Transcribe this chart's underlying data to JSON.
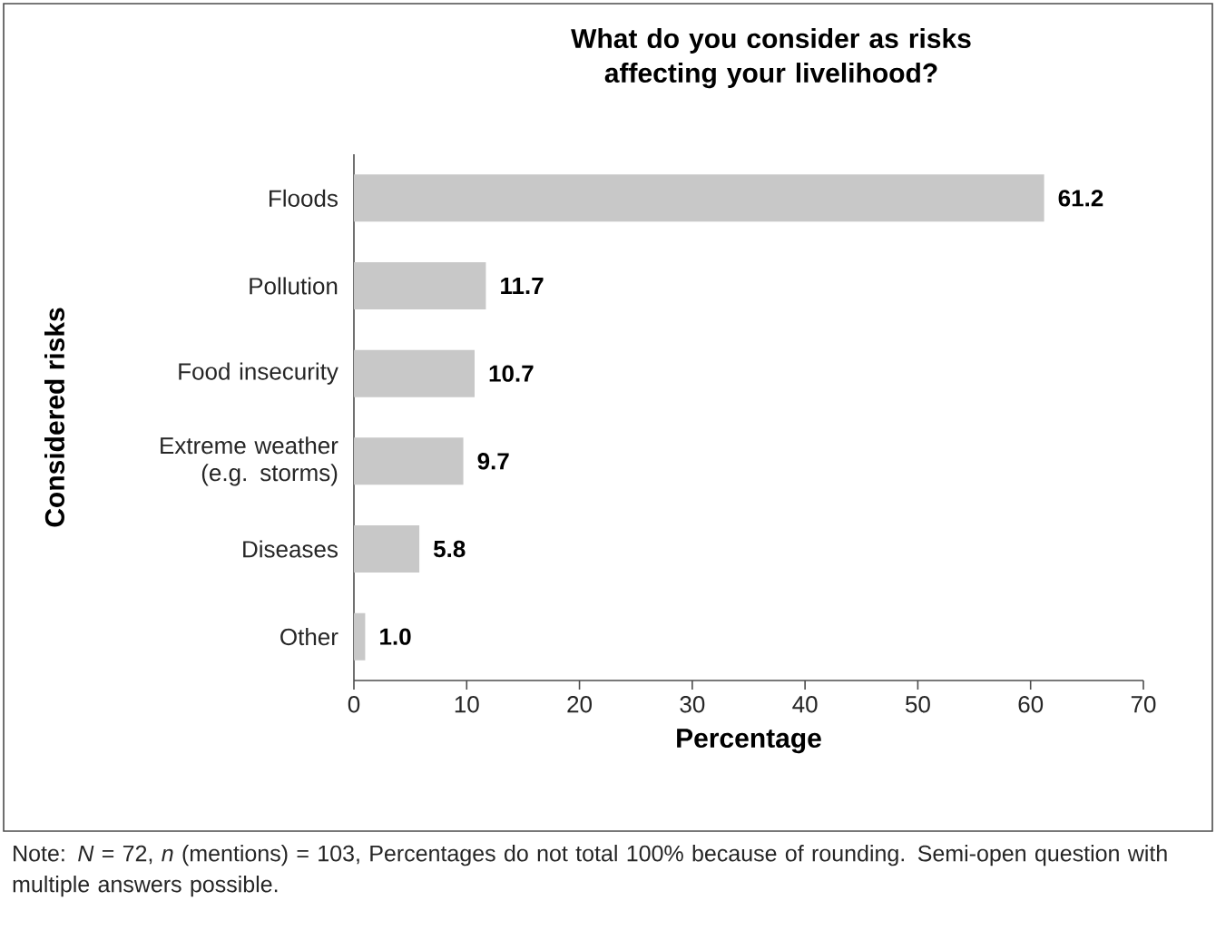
{
  "chart_data": {
    "type": "bar",
    "orientation": "horizontal",
    "title": "What do you consider as risks affecting your livelihood?",
    "xlabel": "Percentage",
    "ylabel": "Considered risks",
    "categories": [
      "Floods",
      "Pollution",
      "Food insecurity",
      "Extreme weather (e.g. storms)",
      "Diseases",
      "Other"
    ],
    "values": [
      61.2,
      11.7,
      10.7,
      9.7,
      5.8,
      1.0
    ],
    "color": "#c8c8c8",
    "value_labels": [
      "61.2",
      "11.7",
      "10.7",
      "9.7",
      "5.8",
      "1.0"
    ],
    "xlim": [
      0,
      70
    ],
    "xticks": [
      0,
      10,
      20,
      30,
      40,
      50,
      60,
      70
    ],
    "annotations": [
      "Note: *N* = 72, *n* (mentions) = 103, Percentages do not total 100% because of rounding. Semi-open question with multiple answers possible."
    ]
  }
}
